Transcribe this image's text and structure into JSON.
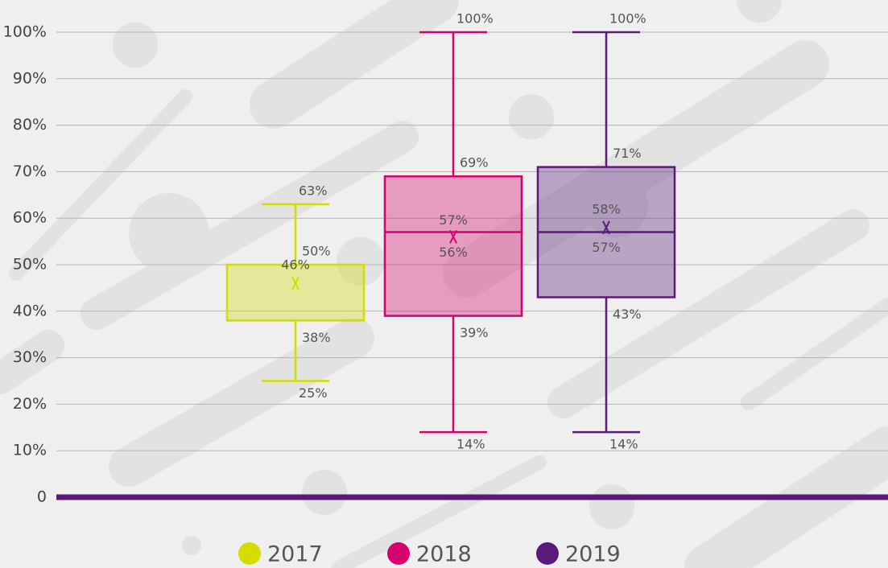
{
  "chart_data": {
    "type": "box",
    "ylim": [
      0,
      100
    ],
    "yticks": [
      0,
      {
        "value": 10,
        "label": "10%"
      },
      {
        "value": 20,
        "label": "20%"
      },
      {
        "value": 30,
        "label": "30%"
      },
      {
        "value": 40,
        "label": "40%"
      },
      {
        "value": 50,
        "label": "50%"
      },
      {
        "value": 60,
        "label": "60%"
      },
      {
        "value": 70,
        "label": "70%"
      },
      {
        "value": 80,
        "label": "80%"
      },
      {
        "value": 90,
        "label": "90%"
      },
      {
        "value": 100,
        "label": "100%"
      }
    ],
    "grid": true,
    "legend": "bottom",
    "series": [
      {
        "name": "2017",
        "color": "#d4dc00",
        "values": {
          "min": 25,
          "q1": 38,
          "median": 38,
          "q3": 50,
          "max": 63,
          "mean": 46
        },
        "value_labels": {
          "min": "25%",
          "q1": "38%",
          "q3": "50%",
          "max": "63%",
          "mean": "46%"
        }
      },
      {
        "name": "2018",
        "color": "#d6006e",
        "values": {
          "min": 14,
          "q1": 39,
          "median": 57,
          "q3": 69,
          "max": 100,
          "mean": 56
        },
        "value_labels": {
          "min": "14%",
          "q1": "39%",
          "median": "57%",
          "q3": "69%",
          "max": "100%",
          "mean": "56%"
        }
      },
      {
        "name": "2019",
        "color": "#5a1a7a",
        "values": {
          "min": 14,
          "q1": 43,
          "median": 57,
          "q3": 71,
          "max": 100,
          "mean": 58
        },
        "value_labels": {
          "min": "14%",
          "q1": "43%",
          "median": "57%",
          "q3": "71%",
          "max": "100%",
          "mean": "58%"
        }
      }
    ]
  }
}
